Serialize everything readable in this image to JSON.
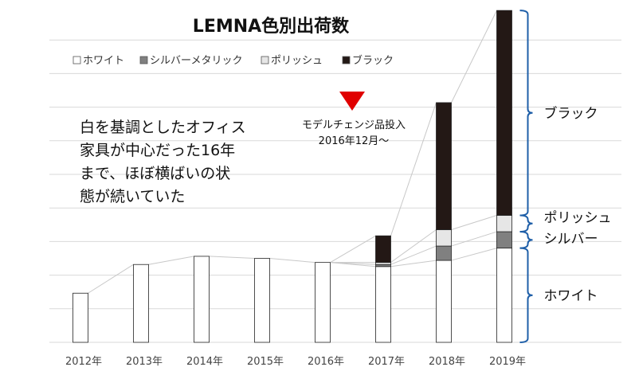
{
  "chart_data": {
    "type": "bar",
    "stacked": true,
    "title": "LEMNA色別出荷数",
    "categories": [
      "2012年",
      "2013年",
      "2014年",
      "2015年",
      "2016年",
      "2017年",
      "2018年",
      "2019年"
    ],
    "series": [
      {
        "name": "ホワイト",
        "color": "#ffffff",
        "values": [
          12,
          19,
          21,
          20.5,
          19.5,
          18.5,
          20,
          23
        ]
      },
      {
        "name": "シルバーメタリック",
        "color": "#808080",
        "values": [
          0,
          0,
          0,
          0,
          0,
          0.5,
          3.5,
          4
        ]
      },
      {
        "name": "ポリッシュ",
        "color": "#e6e6e6",
        "values": [
          0,
          0,
          0,
          0,
          0,
          0.5,
          4,
          4
        ]
      },
      {
        "name": "ブラック",
        "color": "#231815",
        "values": [
          0,
          0,
          0,
          0,
          0,
          6.5,
          31,
          50
        ]
      }
    ],
    "ylim": [
      0,
      82
    ],
    "grid": true,
    "legend": "top-left",
    "annotations": {
      "note": [
        "白を基調としたオフィス",
        "家具が中心だった16年",
        "まで、ほぼ横ばいの状",
        "態が続いていた"
      ],
      "event": [
        "モデルチェンジ品投入",
        "2016年12月～"
      ],
      "event_marker_color": "#e00000"
    },
    "brace_labels": [
      "ブラック",
      "ポリッシュ",
      "シルバー",
      "ホワイト"
    ],
    "brace_color": "#1f5fa8"
  }
}
